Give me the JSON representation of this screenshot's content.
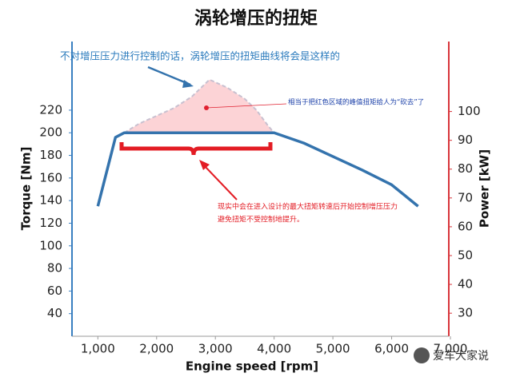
{
  "chart_data": {
    "type": "line",
    "title": "涡轮增压的扭矩",
    "annotations": [
      "不对增压压力进行控制的话，涡轮增压的扭矩曲线将会是这样的",
      "相当于把红色区域的峰值扭矩给人为“砍去”了",
      "现实中会在进入设计的最大扭矩转速后开始控制增压压力",
      "避免扭矩不受控制地提升。"
    ],
    "xlabel": "Engine speed [rpm]",
    "ylabel": "Torque [Nm]",
    "y2label": "Power [kW]",
    "xlim": [
      560,
      7000
    ],
    "ylim": [
      20,
      280
    ],
    "y2lim": [
      22,
      124
    ],
    "xticks": [
      {
        "value": 1000,
        "label": "1,000"
      },
      {
        "value": 2000,
        "label": "2,000"
      },
      {
        "value": 3000,
        "label": "3,000"
      },
      {
        "value": 4000,
        "label": "4,000"
      },
      {
        "value": 5000,
        "label": "5,000"
      },
      {
        "value": 6000,
        "label": "6,000"
      },
      {
        "value": 7000,
        "label": "7,000"
      }
    ],
    "yticks": [
      40,
      60,
      80,
      100,
      120,
      140,
      160,
      180,
      200,
      220
    ],
    "y2ticks": [
      30,
      40,
      50,
      60,
      70,
      80,
      90,
      100
    ],
    "series": [
      {
        "color": "#3473ad",
        "x": [
          1000,
          1300,
          1450,
          2000,
          3000,
          4000,
          4500,
          5000,
          5500,
          6000,
          6450
        ],
        "values": [
          135,
          196,
          200,
          200,
          200,
          200,
          191,
          179,
          167,
          154,
          135
        ]
      },
      {
        "color": "#c8c0d0",
        "fill": "#fcd3d6",
        "x": [
          1450,
          1700,
          2000,
          2300,
          2600,
          2900,
          3200,
          3500,
          3700,
          3900,
          4000
        ],
        "values": [
          200,
          208,
          215,
          222,
          232,
          247,
          240,
          230,
          220,
          206,
          200
        ]
      }
    ],
    "watermark": "爱车大家说"
  }
}
